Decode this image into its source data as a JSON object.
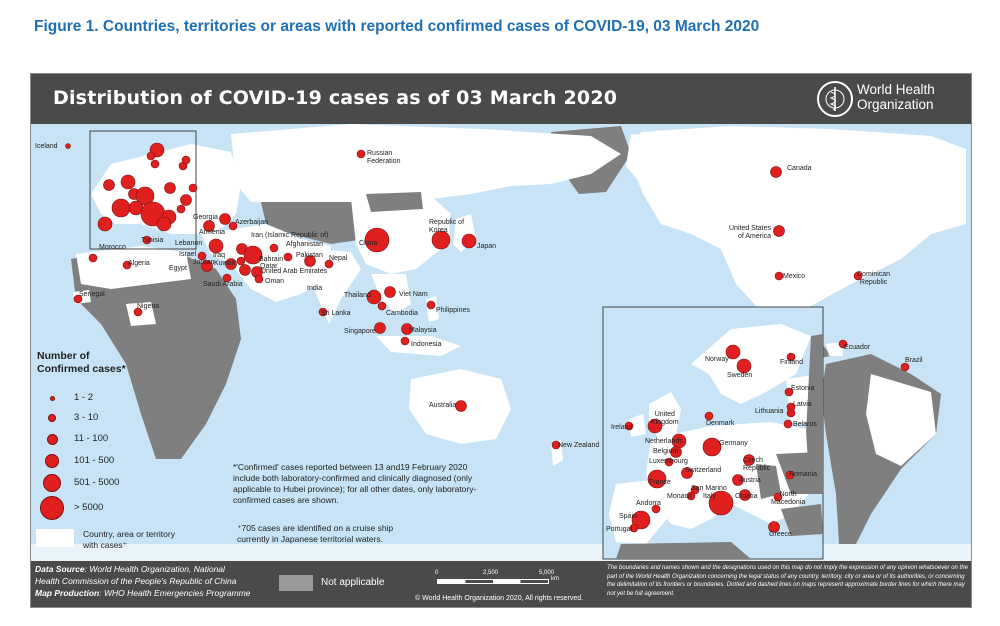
{
  "figure_title": "Figure 1. Countries, territories or areas with reported confirmed cases of COVID-19, 03 March 2020",
  "map_title": "Distribution of COVID-19 cases as of 03 March 2020",
  "who": {
    "line1": "World Health",
    "line2": "Organization",
    "icon": "who-emblem-icon"
  },
  "colors": {
    "ocean": "#c7e3f5",
    "land_affected": "#ffffff",
    "land_other": "#7f7f7f",
    "dot": "#e0201f",
    "banner": "#4a4a4a",
    "title_blue": "#1f6fb5"
  },
  "labels": {
    "iceland": "Iceland",
    "russia": "Russian\nFederation",
    "canada": "Canada",
    "georgia": "Georgia",
    "azerbaijan": "Azerbaijan",
    "armenia": "Armenia",
    "iran": "Iran (Islamic Republic of)",
    "afghanistan": "Afghanistan",
    "pakistan": "Pakistan",
    "lebanon": "Lebanon",
    "israel": "Israel",
    "jordan": "Jordan",
    "iraq": "Iraq",
    "kuwait": "Kuwait",
    "bahrain": "Bahrain",
    "qatar": "Qatar",
    "uae": "United Arab Emirates",
    "oman": "Oman",
    "saudi": "Saudi Arabia",
    "egypt": "Egypt",
    "nepal": "Nepal",
    "india": "India",
    "china": "China",
    "korea": "Republic of Korea",
    "japan": "Japan",
    "usa": "United States\nof America",
    "mexico": "Mexico",
    "dominican": "Dominican\nRepublic",
    "ecuador": "Ecuador",
    "brazil": "Brazil",
    "morocco": "Morocco",
    "algeria": "Algeria",
    "tunisia": "Tunisia",
    "senegal": "Senegal",
    "nigeria": "Nigeria",
    "thailand": "Thailand",
    "vietnam": "Viet Nam",
    "cambodia": "Cambodia",
    "philippines": "Philippines",
    "srilanka": "Sri Lanka",
    "singapore": "Singapore",
    "malaysia": "Malaysia",
    "indonesia": "Indonesia",
    "australia": "Australia",
    "newzealand": "New Zealand",
    "norway": "Norway",
    "finland": "Finland",
    "sweden": "Sweden",
    "estonia": "Estonia",
    "latvia": "Latvia",
    "lithuania": "Lithuania",
    "belarus": "Belarus",
    "uk": "United\nKingdom",
    "ireland": "Ireland",
    "denmark": "Denmark",
    "netherlands": "Netherlands",
    "belgium": "Belgium",
    "luxembourg": "Luxembourg",
    "germany": "Germany",
    "czech": "Czech\nRepublic",
    "switzerland": "Switzerland",
    "austria": "Austria",
    "france": "France",
    "sanmarino": "San Marino",
    "monaco": "Monaco",
    "italy": "Italy",
    "croatia": "Croatia",
    "romania": "Romania",
    "northmacedonia": "North\nMacedonia",
    "andorra": "Andorra",
    "spain": "Spain",
    "portugal": "Portugal",
    "greece": "Greece"
  },
  "legend": {
    "title": "Number of\nConfirmed cases*",
    "items": [
      {
        "label": "1 - 2",
        "size": 5
      },
      {
        "label": "3 - 10",
        "size": 8
      },
      {
        "label": "11 - 100",
        "size": 11
      },
      {
        "label": "101 - 500",
        "size": 14
      },
      {
        "label": "501 - 5000",
        "size": 18
      },
      {
        "label": "> 5000",
        "size": 24
      }
    ],
    "area_label": "Country, area or territory\nwith cases⁺"
  },
  "notes": {
    "confirmed": "*'Confirmed' cases reported between 13 and19 February 2020\ninclude both laboratory-confirmed and clinically diagnosed (only\napplicable to Hubei province); for all other dates, only laboratory-\nconfirmed cases are shown.",
    "cruise": "⁺705 cases are identified on a cruise ship\ncurrently in Japanese territorial waters."
  },
  "footer": {
    "data_source_label": "Data Source",
    "data_source": ": World Health Organization, National",
    "data_source2": "Health Commission of the People's Republic of China",
    "map_production_label": "Map Production",
    "map_production": ": WHO Health Emergencies Programme",
    "not_applicable": "Not applicable",
    "scale_ticks": [
      "0",
      "2,500",
      "5,000"
    ],
    "scale_unit": "km",
    "copyright": "© World Health Organization 2020, All rights reserved.",
    "disclaimer": "The boundaries and names shown and the designations used on this map do not imply the expression of any opinion whatsoever on the part of the World Health Organization concerning the legal status of any country, territory, city or area or of its authorities, or concerning the delimitation of its frontiers or boundaries. Dotted and dashed lines on maps represent approximate border lines for which there may not yet be full agreement."
  }
}
